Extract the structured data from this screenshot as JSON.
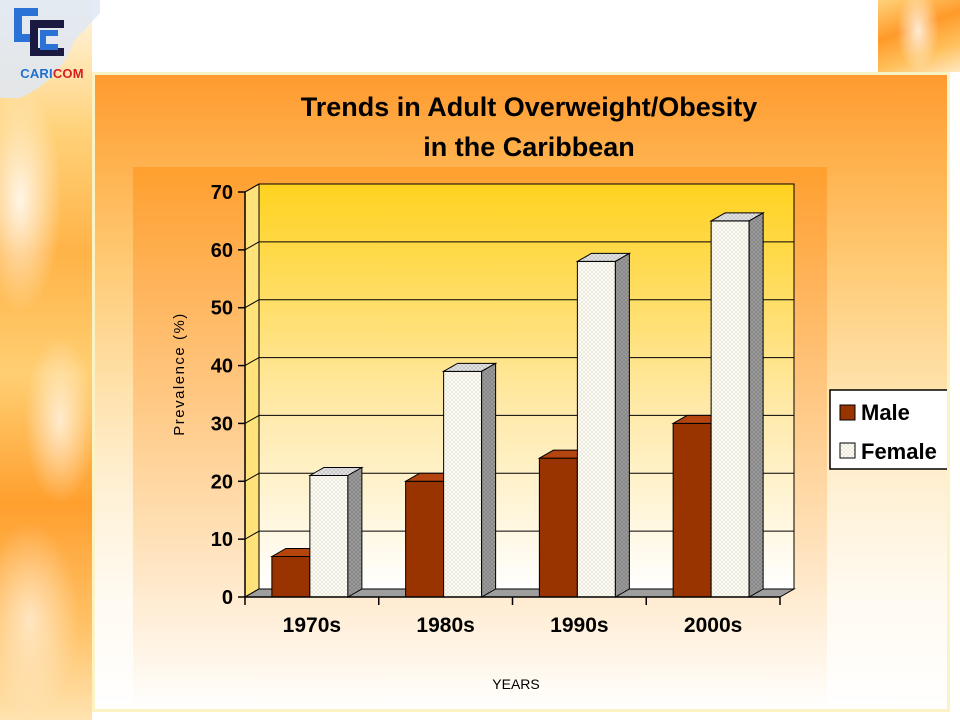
{
  "logo": {
    "text_primary": "CARI",
    "text_accent": "COM"
  },
  "colors": {
    "male": "#993300",
    "male_side": "#5a1e00",
    "male_top": "#b5450f",
    "female": "#fffbea",
    "female_side": "#8a8a8a",
    "female_top": "#d8d8d8",
    "floor": "#9e9e9e",
    "plot_bg_top": "#ffd21f",
    "plot_bg_bottom": "#ffffff"
  },
  "chart_data": {
    "type": "bar",
    "title": "Trends in Adult Overweight/Obesity",
    "subtitle": "in the Caribbean",
    "xlabel": "YEARS",
    "ylabel": "Prevalence (%)",
    "categories": [
      "1970s",
      "1980s",
      "1990s",
      "2000s"
    ],
    "series": [
      {
        "name": "Male",
        "values": [
          7,
          20,
          24,
          30
        ]
      },
      {
        "name": "Female",
        "values": [
          21,
          39,
          58,
          65
        ]
      }
    ],
    "ylim": [
      0,
      70
    ],
    "yticks": [
      "0",
      "10",
      "20",
      "30",
      "40",
      "50",
      "60",
      "70"
    ],
    "grid": true,
    "legend_position": "right",
    "style": "3d-clustered-column"
  }
}
